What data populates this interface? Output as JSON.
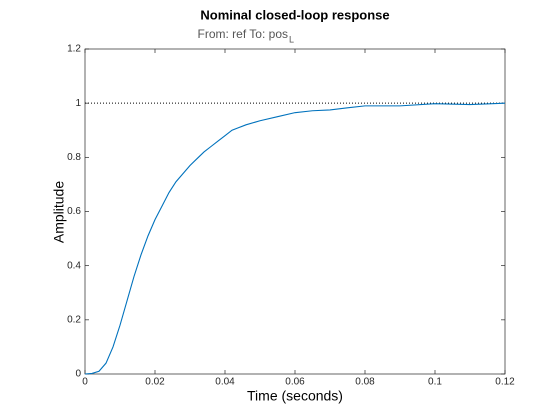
{
  "chart_data": {
    "type": "line",
    "title": "Nominal closed-loop response",
    "subtitle": "From: ref  To: pos",
    "subtitle_subscript": "L",
    "xlabel": "Time (seconds)",
    "ylabel": "Amplitude",
    "x": [
      0,
      0.002,
      0.004,
      0.006,
      0.008,
      0.01,
      0.012,
      0.014,
      0.016,
      0.018,
      0.02,
      0.022,
      0.024,
      0.026,
      0.028,
      0.03,
      0.032,
      0.034,
      0.036,
      0.038,
      0.04,
      0.042,
      0.044,
      0.046,
      0.05,
      0.055,
      0.06,
      0.065,
      0.07,
      0.075,
      0.08,
      0.09,
      0.1,
      0.11,
      0.12
    ],
    "values": [
      0,
      0.002,
      0.01,
      0.04,
      0.1,
      0.18,
      0.27,
      0.36,
      0.44,
      0.51,
      0.57,
      0.62,
      0.67,
      0.71,
      0.74,
      0.77,
      0.795,
      0.82,
      0.84,
      0.86,
      0.88,
      0.9,
      0.91,
      0.92,
      0.935,
      0.95,
      0.965,
      0.972,
      0.975,
      0.983,
      0.99,
      0.99,
      0.998,
      0.995,
      1.0
    ],
    "color": "#0072bd",
    "reference_line": 1,
    "xlim": [
      0,
      0.12
    ],
    "xticks": [
      0,
      0.02,
      0.04,
      0.06,
      0.08,
      0.1,
      0.12
    ],
    "ylim": [
      0,
      1.2
    ],
    "yticks": [
      0,
      0.2,
      0.4,
      0.6,
      0.8,
      1,
      1.2
    ]
  }
}
